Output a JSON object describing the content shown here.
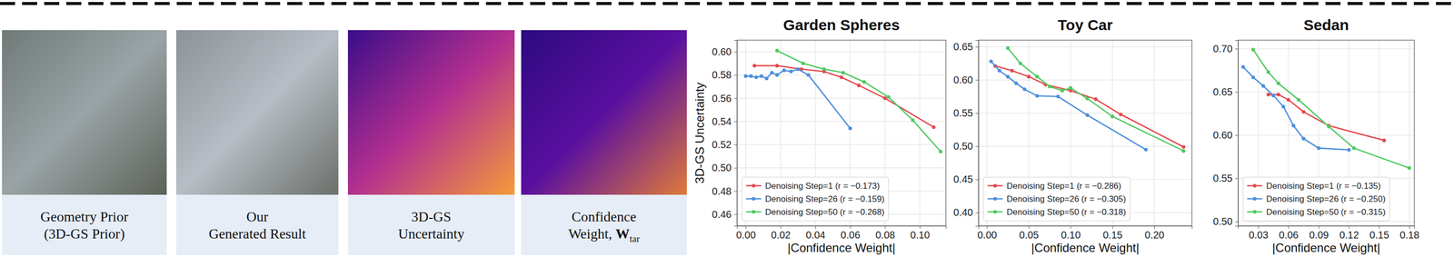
{
  "image_panels": [
    {
      "caption": [
        "Geometry Prior",
        "(3D-GS Prior)"
      ]
    },
    {
      "caption": [
        "Our",
        "Generated Result"
      ]
    },
    {
      "caption": [
        "3D-GS",
        "Uncertainty"
      ]
    },
    {
      "caption": [
        "Confidence",
        "Weight, "
      ],
      "symbol": "W",
      "subscript": "tar"
    }
  ],
  "chart_data": [
    {
      "type": "line",
      "title": "Garden Spheres",
      "x_label": "|Confidence Weight|",
      "y_label": "3D-GS Uncertainty",
      "xlim": [
        -0.005,
        0.115
      ],
      "ylim": [
        0.45,
        0.61
      ],
      "xticks": [
        {
          "value": 0,
          "label": "0.00"
        },
        0.02,
        0.04,
        0.06,
        0.08,
        {
          "value": 0.1,
          "label": "0.10"
        }
      ],
      "yticks": [
        0.46,
        0.48,
        {
          "value": 0.5,
          "label": "0.50"
        },
        0.52,
        0.54,
        0.56,
        0.58,
        {
          "value": 0.6,
          "label": "0.60"
        }
      ],
      "grid": true,
      "legend": "lower left",
      "marker": "circle",
      "line_style": "solid",
      "series": [
        {
          "name": "Denoising Step=1  (r = −0.173)",
          "color": "#e5484d",
          "x": [
            0.005,
            0.018,
            0.032,
            0.045,
            0.055,
            0.065,
            0.08,
            0.108
          ],
          "values": [
            0.588,
            0.588,
            0.585,
            0.583,
            0.578,
            0.571,
            0.56,
            0.535
          ]
        },
        {
          "name": "Denoising Step=26  (r = −0.159)",
          "color": "#4c8fdc",
          "x": [
            0.0,
            0.003,
            0.006,
            0.009,
            0.012,
            0.015,
            0.018,
            0.022,
            0.026,
            0.03,
            0.036,
            0.06
          ],
          "values": [
            0.579,
            0.579,
            0.578,
            0.579,
            0.577,
            0.582,
            0.58,
            0.584,
            0.583,
            0.585,
            0.58,
            0.534
          ]
        },
        {
          "name": "Denoising Step=50  (r = −0.268)",
          "color": "#4fc95e",
          "x": [
            0.018,
            0.033,
            0.045,
            0.056,
            0.068,
            0.082,
            0.096,
            0.112
          ],
          "values": [
            0.601,
            0.59,
            0.585,
            0.582,
            0.574,
            0.561,
            0.541,
            0.514
          ]
        }
      ]
    },
    {
      "type": "line",
      "title": "Toy Car",
      "x_label": "|Confidence Weight|",
      "xlim": [
        -0.01,
        0.245
      ],
      "ylim": [
        0.38,
        0.66
      ],
      "xticks": [
        {
          "value": 0,
          "label": "0.00"
        },
        0.05,
        {
          "value": 0.1,
          "label": "0.10"
        },
        0.15,
        {
          "value": 0.2,
          "label": "0.20"
        }
      ],
      "yticks": [
        {
          "value": 0.4,
          "label": "0.40"
        },
        0.45,
        {
          "value": 0.5,
          "label": "0.50"
        },
        0.55,
        {
          "value": 0.6,
          "label": "0.60"
        },
        0.65
      ],
      "grid": true,
      "legend": "lower left",
      "marker": "circle",
      "line_style": "solid",
      "series": [
        {
          "name": "Denoising Step=1  (r = −0.286)",
          "color": "#e5484d",
          "x": [
            0.01,
            0.03,
            0.05,
            0.07,
            0.1,
            0.13,
            0.16,
            0.235
          ],
          "values": [
            0.621,
            0.614,
            0.605,
            0.593,
            0.584,
            0.571,
            0.548,
            0.499
          ]
        },
        {
          "name": "Denoising Step=26  (r = −0.305)",
          "color": "#4c8fdc",
          "x": [
            0.005,
            0.015,
            0.025,
            0.035,
            0.045,
            0.06,
            0.085,
            0.12,
            0.19
          ],
          "values": [
            0.628,
            0.614,
            0.605,
            0.595,
            0.586,
            0.576,
            0.575,
            0.547,
            0.495
          ]
        },
        {
          "name": "Denoising Step=50  (r = −0.318)",
          "color": "#4fc95e",
          "x": [
            0.025,
            0.04,
            0.06,
            0.075,
            0.09,
            0.1,
            0.12,
            0.15,
            0.235
          ],
          "values": [
            0.648,
            0.625,
            0.605,
            0.59,
            0.584,
            0.588,
            0.572,
            0.545,
            0.493
          ]
        }
      ]
    },
    {
      "type": "line",
      "title": "Sedan",
      "x_label": "|Confidence Weight|",
      "xlim": [
        0.01,
        0.185
      ],
      "ylim": [
        0.495,
        0.71
      ],
      "xticks": [
        0.03,
        0.06,
        0.09,
        0.12,
        0.15,
        0.18
      ],
      "yticks": [
        {
          "value": 0.5,
          "label": "0.50"
        },
        0.55,
        {
          "value": 0.6,
          "label": "0.60"
        },
        0.65,
        {
          "value": 0.7,
          "label": "0.70"
        }
      ],
      "grid": true,
      "legend": "lower left",
      "marker": "circle",
      "line_style": "solid",
      "series": [
        {
          "name": "Denoising Step=1  (r = −0.135)",
          "color": "#e5484d",
          "x": [
            0.04,
            0.05,
            0.06,
            0.075,
            0.1,
            0.155
          ],
          "values": [
            0.647,
            0.647,
            0.641,
            0.627,
            0.611,
            0.594
          ]
        },
        {
          "name": "Denoising Step=26  (r = −0.250)",
          "color": "#4c8fdc",
          "x": [
            0.015,
            0.025,
            0.035,
            0.045,
            0.055,
            0.065,
            0.075,
            0.09,
            0.12
          ],
          "values": [
            0.679,
            0.667,
            0.657,
            0.646,
            0.633,
            0.611,
            0.596,
            0.585,
            0.583
          ]
        },
        {
          "name": "Denoising Step=50  (r = −0.315)",
          "color": "#4fc95e",
          "x": [
            0.025,
            0.04,
            0.05,
            0.07,
            0.1,
            0.125,
            0.18
          ],
          "values": [
            0.699,
            0.673,
            0.66,
            0.641,
            0.61,
            0.585,
            0.562
          ]
        }
      ]
    }
  ]
}
